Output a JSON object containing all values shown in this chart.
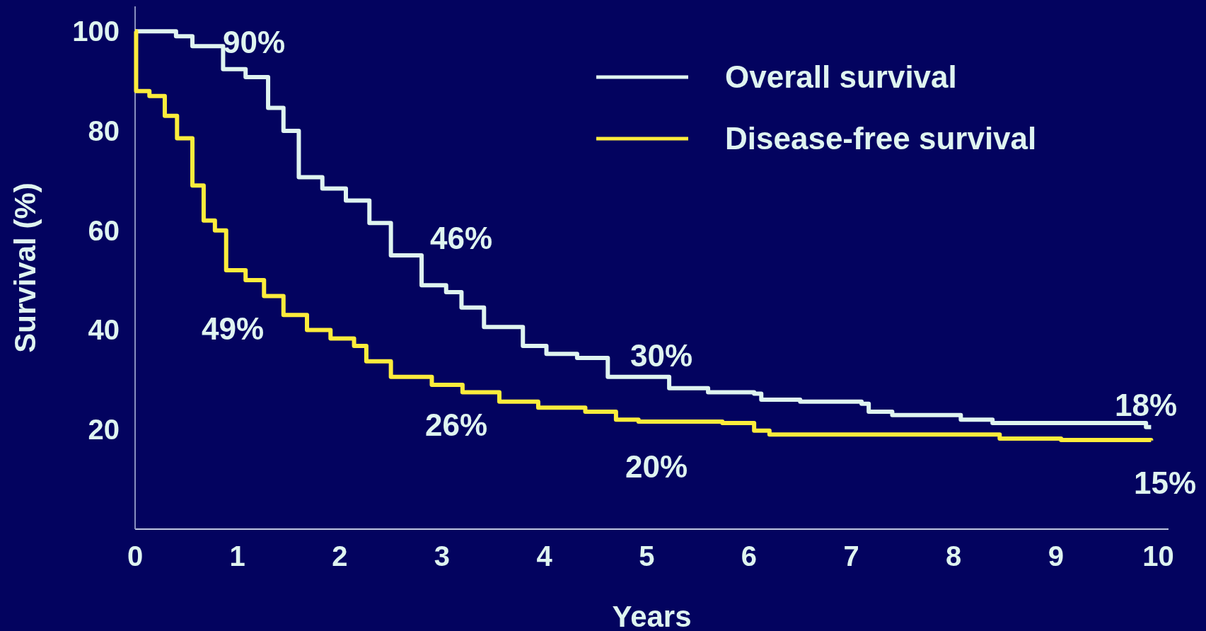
{
  "chart_data": {
    "type": "step",
    "xlabel": "Years",
    "ylabel": "Survival (%)",
    "xlim": [
      0,
      10.1
    ],
    "ylim": [
      0,
      105
    ],
    "xticks": [
      0,
      1,
      2,
      3,
      4,
      5,
      6,
      7,
      8,
      9,
      10
    ],
    "yticks": [
      20,
      40,
      60,
      80,
      100
    ],
    "legend": "top right",
    "grid": false,
    "series": [
      {
        "name": "Overall survival",
        "color": "#dff4f0",
        "x": [
          0,
          0.4,
          0.56,
          0.86,
          1.08,
          1.3,
          1.45,
          1.6,
          1.83,
          2.06,
          2.29,
          2.5,
          2.8,
          3.04,
          3.19,
          3.41,
          3.64,
          3.79,
          4.02,
          4.32,
          4.62,
          4.92,
          5.22,
          5.6,
          6.05,
          6.12,
          6.5,
          7.1,
          7.17,
          7.4,
          8.07,
          8.38,
          9.2,
          9.88,
          9.93
        ],
        "values": [
          100,
          99,
          97,
          92.4,
          90.8,
          84.6,
          80,
          70.7,
          68.4,
          66,
          61.5,
          55,
          49,
          47.6,
          44.5,
          40.6,
          40.6,
          36.8,
          35.2,
          34.4,
          30.6,
          30.6,
          28.3,
          27.5,
          27.2,
          26,
          25.6,
          25.2,
          23.6,
          22.9,
          22,
          21.3,
          21.3,
          20.5,
          20.5
        ]
      },
      {
        "name": "Disease-free survival",
        "color": "#fcec3c",
        "x": [
          0,
          0.01,
          0.14,
          0.29,
          0.41,
          0.56,
          0.67,
          0.78,
          0.89,
          1.08,
          1.26,
          1.45,
          1.68,
          1.91,
          2.14,
          2.26,
          2.5,
          2.9,
          3.2,
          3.56,
          3.94,
          4.4,
          4.7,
          4.92,
          5.74,
          6.05,
          6.2,
          7.47,
          8.38,
          8.45,
          9.05,
          9.93
        ],
        "values": [
          100,
          88,
          87,
          83,
          78.5,
          69,
          62,
          60,
          52,
          50,
          46.8,
          43,
          40,
          38.3,
          36.8,
          33.7,
          30.6,
          29,
          27.5,
          25.6,
          24.4,
          23.6,
          22,
          21.6,
          21.3,
          19.8,
          19,
          19,
          19,
          18.2,
          17.9,
          17.8
        ]
      }
    ],
    "annotations": [
      "90%",
      "46%",
      "49%",
      "30%",
      "26%",
      "20%",
      "18%",
      "15%"
    ]
  }
}
